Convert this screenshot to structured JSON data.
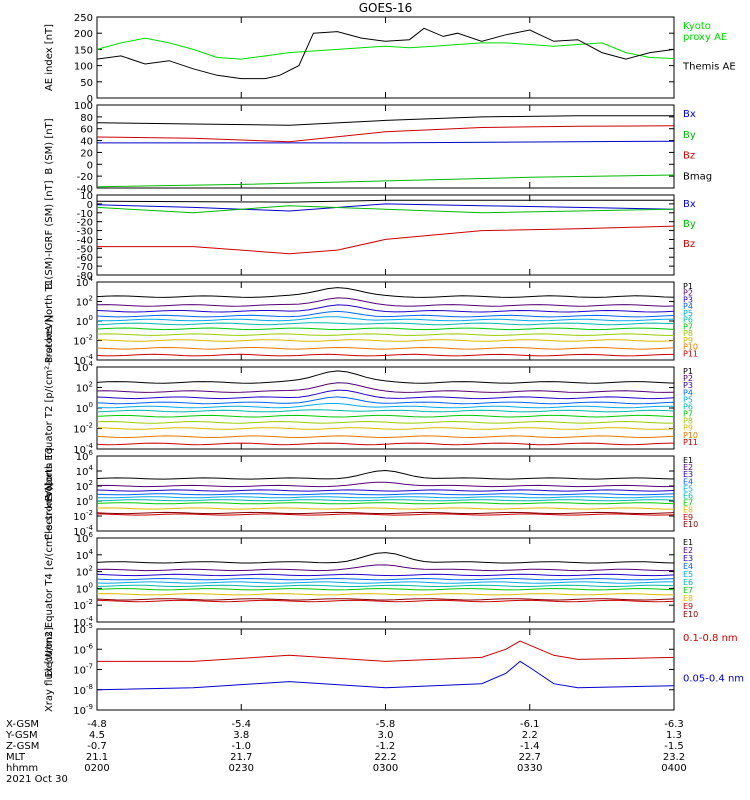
{
  "title": "GOES-16",
  "x_axis": {
    "times": [
      "0200",
      "0230",
      "0300",
      "0330",
      "0400"
    ],
    "rows": [
      {
        "label": "X-GSM",
        "values": [
          "-4.8",
          "-5.4",
          "-5.8",
          "-6.1",
          "-6.3"
        ]
      },
      {
        "label": "Y-GSM",
        "values": [
          "4.5",
          "3.8",
          "3.0",
          "2.2",
          "1.3"
        ]
      },
      {
        "label": "Z-GSM",
        "values": [
          "-0.7",
          "-1.0",
          "-1.2",
          "-1.4",
          "-1.5"
        ]
      },
      {
        "label": "MLT",
        "values": [
          "21.1",
          "21.7",
          "22.2",
          "22.7",
          "23.2"
        ]
      },
      {
        "label": "hhmm",
        "values": [
          "0200",
          "0230",
          "0300",
          "0330",
          "0400"
        ]
      }
    ],
    "date": "2021 Oct 30"
  },
  "chart_data": [
    {
      "type": "line",
      "ylabel": "AE index [nT]",
      "ylim": [
        0,
        250
      ],
      "log": false,
      "yticks": [
        0,
        50,
        100,
        150,
        200,
        250
      ],
      "series": [
        {
          "name": "Kyoto proxy AE",
          "label_lines": [
            "Kyoto",
            "proxy AE"
          ],
          "color": "#00dd00",
          "x": [
            0,
            5,
            10,
            15,
            20,
            25,
            30,
            35,
            40,
            45,
            50,
            55,
            60,
            65,
            70,
            75,
            80,
            85,
            90,
            95,
            100,
            105,
            110,
            115,
            120
          ],
          "y": [
            150,
            170,
            185,
            170,
            150,
            125,
            120,
            130,
            140,
            145,
            150,
            155,
            160,
            155,
            160,
            165,
            170,
            170,
            165,
            160,
            165,
            170,
            140,
            125,
            122
          ]
        },
        {
          "name": "Themis AE",
          "label_lines": [
            "Themis AE"
          ],
          "color": "#000000",
          "x": [
            0,
            5,
            10,
            15,
            20,
            25,
            30,
            35,
            38,
            42,
            45,
            50,
            55,
            60,
            65,
            68,
            72,
            75,
            80,
            85,
            90,
            95,
            100,
            105,
            110,
            115,
            120
          ],
          "y": [
            120,
            130,
            105,
            115,
            90,
            70,
            60,
            60,
            70,
            100,
            200,
            205,
            185,
            175,
            180,
            215,
            190,
            200,
            175,
            195,
            210,
            175,
            180,
            140,
            120,
            140,
            150
          ]
        }
      ]
    },
    {
      "type": "line",
      "ylabel": "B (SM) [nT]",
      "ylim": [
        -40,
        100
      ],
      "log": false,
      "yticks": [
        -40,
        -20,
        0,
        20,
        40,
        60,
        80,
        100
      ],
      "series": [
        {
          "name": "Bx",
          "color": "#0000cc",
          "x": [
            0,
            60,
            120
          ],
          "y": [
            36,
            36,
            39
          ]
        },
        {
          "name": "By",
          "color": "#00bb00",
          "x": [
            0,
            30,
            60,
            90,
            120
          ],
          "y": [
            -38,
            -34,
            -28,
            -22,
            -18
          ]
        },
        {
          "name": "Bz",
          "color": "#cc0000",
          "x": [
            0,
            20,
            40,
            60,
            80,
            100,
            120
          ],
          "y": [
            46,
            44,
            38,
            55,
            62,
            64,
            65
          ]
        },
        {
          "name": "Bmag",
          "color": "#000000",
          "x": [
            0,
            20,
            40,
            60,
            80,
            100,
            120
          ],
          "y": [
            70,
            68,
            66,
            74,
            80,
            82,
            82
          ]
        }
      ]
    },
    {
      "type": "line",
      "ylabel": "B (SM)-IGRF (SM) [nT]",
      "ylim": [
        -80,
        10
      ],
      "log": false,
      "yticks": [
        -80,
        -70,
        -60,
        -50,
        -40,
        -30,
        -20,
        -10,
        0,
        10
      ],
      "series": [
        {
          "name": "Bx",
          "color": "#0000cc",
          "x": [
            0,
            20,
            40,
            60,
            80,
            100,
            120
          ],
          "y": [
            -1,
            -4,
            -8,
            0,
            -2,
            -4,
            -6
          ]
        },
        {
          "name": "By",
          "color": "#00bb00",
          "x": [
            0,
            20,
            40,
            60,
            80,
            100,
            120
          ],
          "y": [
            -4,
            -10,
            -2,
            -6,
            -10,
            -8,
            -6
          ]
        },
        {
          "name": "Bz",
          "color": "#cc0000",
          "x": [
            0,
            20,
            40,
            50,
            60,
            80,
            100,
            120
          ],
          "y": [
            -48,
            -48,
            -56,
            -52,
            -40,
            -30,
            -28,
            -25
          ]
        },
        {
          "name": "",
          "color": "#000000",
          "x": [
            0,
            40,
            60,
            80,
            120
          ],
          "y": [
            3,
            2,
            4,
            4,
            4
          ]
        }
      ]
    },
    {
      "type": "line",
      "ylabel": "Protons North T1",
      "ylim": [
        -4,
        4
      ],
      "log": true,
      "yticks": [
        -4,
        -2,
        0,
        2,
        4
      ],
      "channels": [
        "P1",
        "P2",
        "P3",
        "P4",
        "P5",
        "P6",
        "P7",
        "P8",
        "P9",
        "P10",
        "P11"
      ],
      "channel_colors": [
        "#000000",
        "#550077",
        "#2200cc",
        "#0066ff",
        "#00aaee",
        "#00bbaa",
        "#00cc00",
        "#99cc00",
        "#ddbb00",
        "#ee7700",
        "#cc0000"
      ],
      "base_levels": [
        2.5,
        1.6,
        1.0,
        0.5,
        0.1,
        -0.3,
        -0.8,
        -1.4,
        -2.0,
        -2.8,
        -3.5
      ],
      "bumps": [
        [
          1.0,
          50
        ],
        [
          0.8,
          50
        ],
        [
          0.6,
          50
        ],
        [
          0.4,
          50
        ],
        [
          0.3,
          50
        ],
        [
          0.1,
          50
        ],
        [
          0,
          50
        ],
        [
          0,
          50
        ],
        [
          0,
          50
        ],
        [
          0,
          50
        ],
        [
          0,
          50
        ]
      ]
    },
    {
      "type": "line",
      "ylabel": "Protons Equator T2 [p/(cm²-s-sr-keV)]",
      "ylim": [
        -4,
        4
      ],
      "log": true,
      "yticks": [
        -4,
        -2,
        0,
        2,
        4
      ],
      "channels": [
        "P1",
        "P2",
        "P3",
        "P4",
        "P5",
        "P6",
        "P7",
        "P8",
        "P9",
        "P10",
        "P11"
      ],
      "channel_colors": [
        "#000000",
        "#550077",
        "#2200cc",
        "#0066ff",
        "#00aaee",
        "#00bbaa",
        "#00cc00",
        "#99cc00",
        "#ddbb00",
        "#ee7700",
        "#cc0000"
      ],
      "base_levels": [
        2.5,
        1.6,
        1.0,
        0.5,
        0.1,
        -0.3,
        -0.8,
        -1.4,
        -2.0,
        -2.8,
        -3.5
      ],
      "bumps": [
        [
          1.2,
          50
        ],
        [
          0.9,
          50
        ],
        [
          0.7,
          50
        ],
        [
          0.5,
          50
        ],
        [
          0.3,
          50
        ],
        [
          0.1,
          50
        ],
        [
          0,
          50
        ],
        [
          0,
          50
        ],
        [
          0,
          50
        ],
        [
          0,
          50
        ],
        [
          0,
          50
        ]
      ]
    },
    {
      "type": "line",
      "ylabel": "Electrons North T3",
      "ylim": [
        -4,
        6
      ],
      "log": true,
      "yticks": [
        -4,
        -2,
        0,
        2,
        4,
        6
      ],
      "channels": [
        "E1",
        "E2",
        "E3",
        "E4",
        "E5",
        "E6",
        "E7",
        "E8",
        "E9",
        "E10"
      ],
      "channel_colors": [
        "#000000",
        "#550077",
        "#2200cc",
        "#0066ff",
        "#00aaee",
        "#00bbaa",
        "#00cc00",
        "#ddbb00",
        "#cc0000",
        "#880000"
      ],
      "base_levels": [
        3.0,
        2.0,
        1.4,
        0.9,
        0.5,
        0.1,
        -0.3,
        -1.0,
        -1.8,
        -1.6
      ],
      "bumps": [
        [
          1.0,
          60
        ],
        [
          0.5,
          60
        ],
        [
          0,
          60
        ],
        [
          0,
          60
        ],
        [
          0,
          60
        ],
        [
          0,
          60
        ],
        [
          0,
          60
        ],
        [
          0,
          60
        ],
        [
          0,
          60
        ],
        [
          0,
          60
        ]
      ]
    },
    {
      "type": "line",
      "ylabel": "Electrons Equator T4 [e/(cm²-s-sr-keV)]",
      "ylim": [
        -4,
        6
      ],
      "log": true,
      "yticks": [
        -4,
        -2,
        0,
        2,
        4,
        6
      ],
      "channels": [
        "E1",
        "E2",
        "E3",
        "E4",
        "E5",
        "E6",
        "E7",
        "E8",
        "E9",
        "E10"
      ],
      "channel_colors": [
        "#000000",
        "#550077",
        "#2200cc",
        "#0066ff",
        "#00aaee",
        "#00bbaa",
        "#00cc00",
        "#ddbb00",
        "#cc0000",
        "#880000"
      ],
      "base_levels": [
        3.1,
        2.2,
        1.6,
        1.1,
        0.7,
        0.3,
        -0.1,
        -0.7,
        -1.5,
        -1.3
      ],
      "bumps": [
        [
          1.1,
          60
        ],
        [
          0.6,
          60
        ],
        [
          0,
          60
        ],
        [
          0,
          60
        ],
        [
          0,
          60
        ],
        [
          0,
          60
        ],
        [
          0,
          60
        ],
        [
          0,
          60
        ],
        [
          0,
          60
        ],
        [
          0,
          60
        ]
      ]
    },
    {
      "type": "line",
      "ylabel": "Xray flux [W/m2]",
      "ylim": [
        -9,
        -5
      ],
      "log": true,
      "yticks": [
        -9,
        -8,
        -7,
        -6,
        -5
      ],
      "series": [
        {
          "name": "0.1-0.8 nm",
          "color": "#cc0000",
          "x": [
            0,
            20,
            40,
            60,
            80,
            85,
            88,
            90,
            95,
            100,
            120
          ],
          "y": [
            -6.6,
            -6.6,
            -6.3,
            -6.6,
            -6.4,
            -6.0,
            -5.6,
            -5.8,
            -6.3,
            -6.5,
            -6.4
          ]
        },
        {
          "name": "0.05-0.4 nm",
          "color": "#0000cc",
          "x": [
            0,
            20,
            40,
            60,
            80,
            85,
            88,
            90,
            95,
            100,
            120
          ],
          "y": [
            -8.0,
            -7.9,
            -7.6,
            -7.9,
            -7.7,
            -7.2,
            -6.6,
            -6.9,
            -7.7,
            -7.9,
            -7.8
          ]
        }
      ]
    }
  ]
}
